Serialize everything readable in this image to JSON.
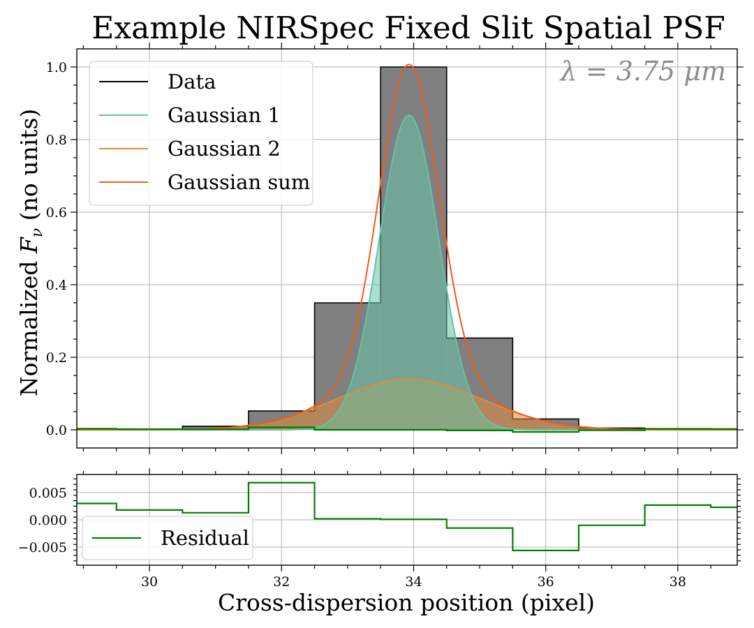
{
  "chart_data": [
    {
      "type": "step+line",
      "title": "Example NIRSpec Fixed Slit Spatial PSF",
      "ylabel": "Normalized F_ν (no units)",
      "xlabel": "",
      "xlim": [
        28.9,
        38.9
      ],
      "ylim": [
        -0.05,
        1.05
      ],
      "xticks": [
        30,
        32,
        34,
        36,
        38
      ],
      "yticks": [
        0.0,
        0.2,
        0.4,
        0.6,
        0.8,
        1.0
      ],
      "ytick_labels": [
        "0.0",
        "0.2",
        "0.4",
        "0.6",
        "0.8",
        "1.0"
      ],
      "annotation": "λ = 3.75 μm",
      "colors": {
        "data": "#000000",
        "data_fill": "#808080",
        "g1": "#66c2a5",
        "g2": "#e08a3c",
        "sum": "#f05a1a",
        "residual": "#008000"
      },
      "legend": {
        "location": "upper-left",
        "entries": [
          {
            "key": "data",
            "label": "Data"
          },
          {
            "key": "g1",
            "label": "Gaussian 1"
          },
          {
            "key": "g2",
            "label": "Gaussian 2"
          },
          {
            "key": "sum",
            "label": "Gaussian sum"
          }
        ]
      },
      "data_steps": {
        "pixel_centers": [
          29,
          30,
          31,
          32,
          33,
          34,
          35,
          36,
          37,
          38,
          39
        ],
        "values": [
          0.0,
          0.0,
          0.01,
          0.052,
          0.35,
          1.0,
          0.253,
          0.03,
          0.005,
          0.0,
          0.0
        ]
      },
      "gaussian_1": {
        "amplitude": 0.867,
        "center": 33.93,
        "sigma": 0.45
      },
      "gaussian_2": {
        "amplitude": 0.14,
        "center": 33.93,
        "sigma": 1.1
      },
      "residual_overlay": true
    },
    {
      "type": "step",
      "xlabel": "Cross-dispersion position (pixel)",
      "ylabel": "",
      "xlim": [
        28.9,
        38.9
      ],
      "ylim": [
        -0.0083,
        0.0083
      ],
      "xticks": [
        30,
        32,
        34,
        36,
        38
      ],
      "xtick_labels": [
        "30",
        "32",
        "34",
        "36",
        "38"
      ],
      "yticks": [
        0.005,
        0.0,
        -0.005
      ],
      "ytick_labels": [
        "0.005",
        "0.000",
        "−0.005"
      ],
      "legend": {
        "location": "lower-left",
        "entries": [
          {
            "key": "residual",
            "label": "Residual"
          }
        ]
      },
      "series": [
        {
          "name": "Residual",
          "pixel_centers": [
            29,
            30,
            31,
            32,
            33,
            34,
            35,
            36,
            37,
            38,
            39
          ],
          "values": [
            0.003,
            0.0018,
            0.0013,
            0.0068,
            0.0002,
            0.0001,
            -0.0015,
            -0.0056,
            -0.001,
            0.0027,
            0.0023
          ]
        }
      ]
    }
  ]
}
